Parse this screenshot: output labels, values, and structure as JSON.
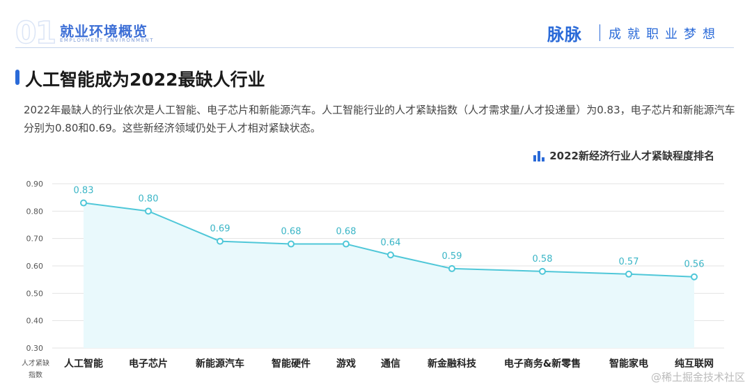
{
  "header": {
    "section_number": "01",
    "title": "就业环境概览",
    "subtitle": "EMPLOYMENT ENVIRONMENT",
    "brand": "脉脉",
    "slogan": "成就职业梦想"
  },
  "section": {
    "title": "人工智能成为2022最缺人行业",
    "paragraph": "2022年最缺人的行业依次是人工智能、电子芯片和新能源汽车。人工智能行业的人才紧缺指数（人才需求量/人才投递量）为0.83，电子芯片和新能源汽车分别为0.80和0.69。这些新经济领域仍处于人才相对紧缺状态。"
  },
  "watermark": "@稀土掘金技术社区",
  "colors": {
    "accent": "#2a6ad8",
    "line": "#4fc7d8",
    "area": "#e9f9fc"
  },
  "chart_data": {
    "type": "line",
    "title": "2022新经济行业人才紧缺程度排名",
    "ylabel": "人才紧缺指数",
    "categories": [
      "人工智能",
      "电子芯片",
      "新能源汽车",
      "智能硬件",
      "游戏",
      "通信",
      "新金融科技",
      "电子商务&新零售",
      "智能家电",
      "纯互联网"
    ],
    "values": [
      0.83,
      0.8,
      0.69,
      0.68,
      0.68,
      0.64,
      0.59,
      0.58,
      0.57,
      0.56
    ],
    "data_labels": [
      "0.83",
      "0.80",
      "0.69",
      "0.68",
      "0.68",
      "0.64",
      "0.59",
      "0.58",
      "0.57",
      "0.56"
    ],
    "ylim": [
      0.3,
      0.9
    ],
    "yticks": [
      0.3,
      0.4,
      0.5,
      0.6,
      0.7,
      0.8,
      0.9
    ],
    "ytick_labels": [
      "0.30",
      "0.40",
      "0.50",
      "0.60",
      "0.70",
      "0.80",
      "0.90"
    ],
    "grid": true,
    "legend": "top-right",
    "area_fill": true
  }
}
